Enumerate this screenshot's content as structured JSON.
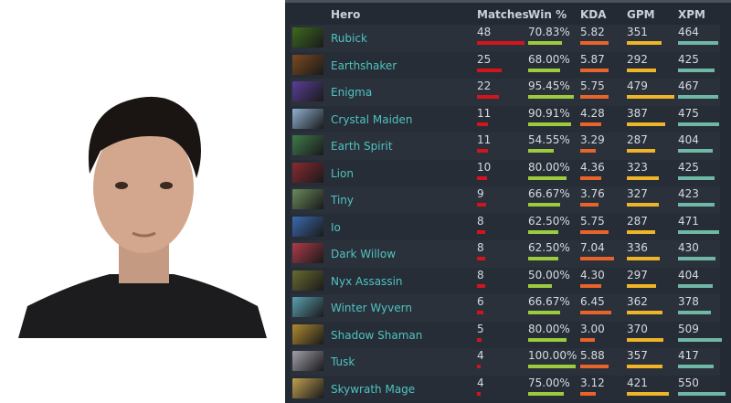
{
  "headers": {
    "hero": "Hero",
    "matches": "Matches",
    "win": "Win %",
    "kda": "KDA",
    "gpm": "GPM",
    "xpm": "XPM"
  },
  "colors": {
    "matches": "#d4141d",
    "win": "#9ccb3e",
    "kda": "#e8642a",
    "gpm": "#f0b428",
    "xpm": "#6fb8a6",
    "hero_name": "#4fc3c0"
  },
  "rows": [
    {
      "hero": "Rubick",
      "matches": "48",
      "win": "70.83%",
      "kda": "5.82",
      "gpm": "351",
      "xpm": "464",
      "icon": "#3d6a1e"
    },
    {
      "hero": "Earthshaker",
      "matches": "25",
      "win": "68.00%",
      "kda": "5.87",
      "gpm": "292",
      "xpm": "425",
      "icon": "#7a4a20"
    },
    {
      "hero": "Enigma",
      "matches": "22",
      "win": "95.45%",
      "kda": "5.75",
      "gpm": "479",
      "xpm": "467",
      "icon": "#5a3f9a"
    },
    {
      "hero": "Crystal Maiden",
      "matches": "11",
      "win": "90.91%",
      "kda": "4.28",
      "gpm": "387",
      "xpm": "475",
      "icon": "#8fb0d0"
    },
    {
      "hero": "Earth Spirit",
      "matches": "11",
      "win": "54.55%",
      "kda": "3.29",
      "gpm": "287",
      "xpm": "404",
      "icon": "#3f7a4a"
    },
    {
      "hero": "Lion",
      "matches": "10",
      "win": "80.00%",
      "kda": "4.36",
      "gpm": "323",
      "xpm": "425",
      "icon": "#8a2a30"
    },
    {
      "hero": "Tiny",
      "matches": "9",
      "win": "66.67%",
      "kda": "3.76",
      "gpm": "327",
      "xpm": "423",
      "icon": "#6a8a5a"
    },
    {
      "hero": "Io",
      "matches": "8",
      "win": "62.50%",
      "kda": "5.75",
      "gpm": "287",
      "xpm": "471",
      "icon": "#3a6ab0"
    },
    {
      "hero": "Dark Willow",
      "matches": "8",
      "win": "62.50%",
      "kda": "7.04",
      "gpm": "336",
      "xpm": "430",
      "icon": "#b03a4a"
    },
    {
      "hero": "Nyx Assassin",
      "matches": "8",
      "win": "50.00%",
      "kda": "4.30",
      "gpm": "297",
      "xpm": "404",
      "icon": "#6a6a30"
    },
    {
      "hero": "Winter Wyvern",
      "matches": "6",
      "win": "66.67%",
      "kda": "6.45",
      "gpm": "362",
      "xpm": "378",
      "icon": "#5aa0b0"
    },
    {
      "hero": "Shadow Shaman",
      "matches": "5",
      "win": "80.00%",
      "kda": "3.00",
      "gpm": "370",
      "xpm": "509",
      "icon": "#b08a30"
    },
    {
      "hero": "Tusk",
      "matches": "4",
      "win": "100.00%",
      "kda": "5.88",
      "gpm": "357",
      "xpm": "417",
      "icon": "#a0a0a8"
    },
    {
      "hero": "Skywrath Mage",
      "matches": "4",
      "win": "75.00%",
      "kda": "3.12",
      "gpm": "421",
      "xpm": "550",
      "icon": "#c0a050"
    }
  ]
}
